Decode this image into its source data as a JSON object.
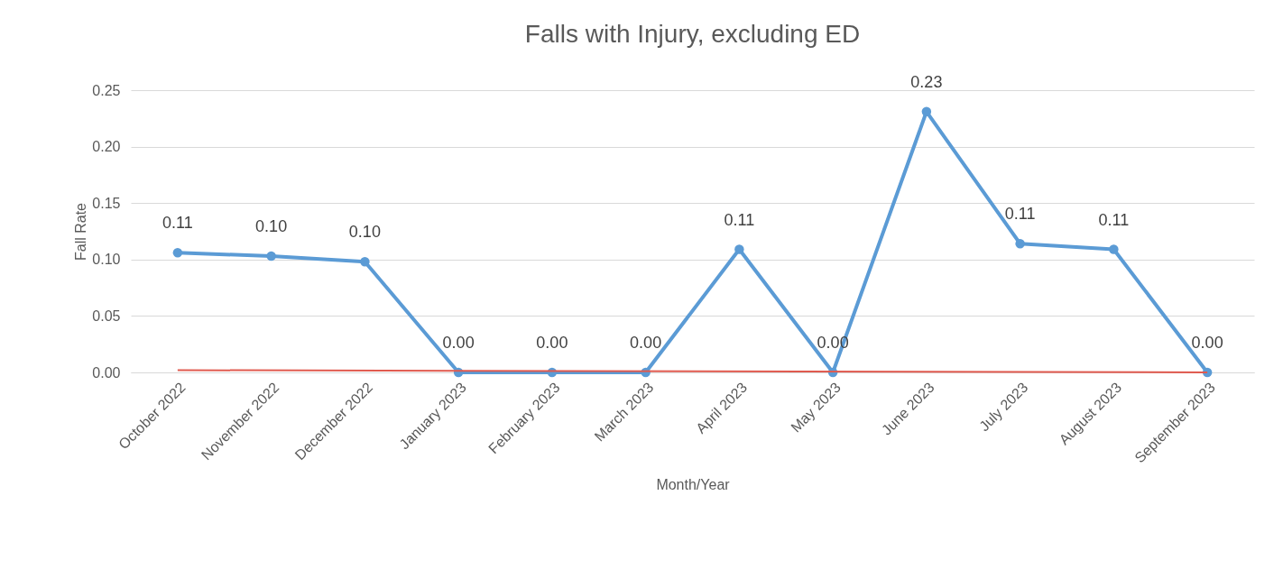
{
  "chart_data": {
    "type": "line",
    "title": "Falls with Injury, excluding ED",
    "xlabel": "Month/Year",
    "ylabel": "Fall Rate",
    "categories": [
      "October 2022",
      "November 2022",
      "December 2022",
      "January 2023",
      "February 2023",
      "March 2023",
      "April 2023",
      "May 2023",
      "June 2023",
      "July 2023",
      "August 2023",
      "September 2023"
    ],
    "series": [
      {
        "color": "#5b9bd5",
        "values": [
          0.106,
          0.103,
          0.098,
          0,
          0,
          0,
          0.109,
          0,
          0.231,
          0.114,
          0.109,
          0
        ],
        "value_labels": [
          "0.11",
          "0.10",
          "0.10",
          "0.00",
          "0.00",
          "0.00",
          "0.11",
          "0.00",
          "0.23",
          "0.11",
          "0.11",
          "0.00"
        ],
        "marker": "circle"
      },
      {
        "type": "line",
        "color": "#e05a4f",
        "x": [
          "October 2022",
          "September 2023"
        ],
        "values": [
          0.002,
          0
        ]
      }
    ],
    "ylim": [
      0,
      0.25
    ],
    "yticks": [
      {
        "value": 0,
        "label": "0.00"
      },
      0.05,
      {
        "value": 0.1,
        "label": "0.10"
      },
      0.15,
      {
        "value": 0.2,
        "label": "0.20"
      },
      0.25
    ],
    "grid": "y"
  }
}
